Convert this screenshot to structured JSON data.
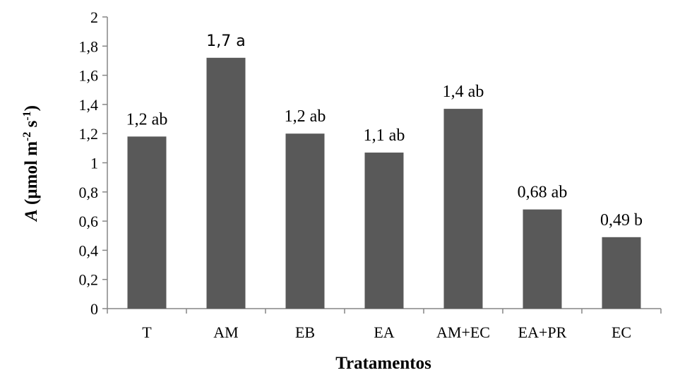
{
  "chart_data": {
    "type": "bar",
    "categories": [
      "T",
      "AM",
      "EB",
      "EA",
      "AM+EC",
      "EA+PR",
      "EC"
    ],
    "values": [
      1.18,
      1.72,
      1.2,
      1.07,
      1.37,
      0.68,
      0.49
    ],
    "data_labels": [
      "1,2 ab",
      "1,7 a",
      "1,2 ab",
      "1,1 ab",
      "1,4 ab",
      "0,68 ab",
      "0,49 b"
    ],
    "xlabel": "Tratamentos",
    "ylabel_italic": "A",
    "ylabel_rest": " (µmol m",
    "ylabel_sup1": "-2",
    "ylabel_mid": " s",
    "ylabel_sup2": "-1",
    "ylabel_end": ")",
    "ylim": [
      0,
      2
    ],
    "yticks": [
      0,
      0.2,
      0.4,
      0.6,
      0.8,
      1,
      1.2,
      1.4,
      1.6,
      1.8,
      2
    ],
    "ytick_labels": [
      "0",
      "0,2",
      "0,4",
      "0,6",
      "0,8",
      "1",
      "1,2",
      "1,4",
      "1,6",
      "1,8",
      "2"
    ],
    "bar_color": "#595959",
    "grid": false,
    "legend": "none"
  }
}
